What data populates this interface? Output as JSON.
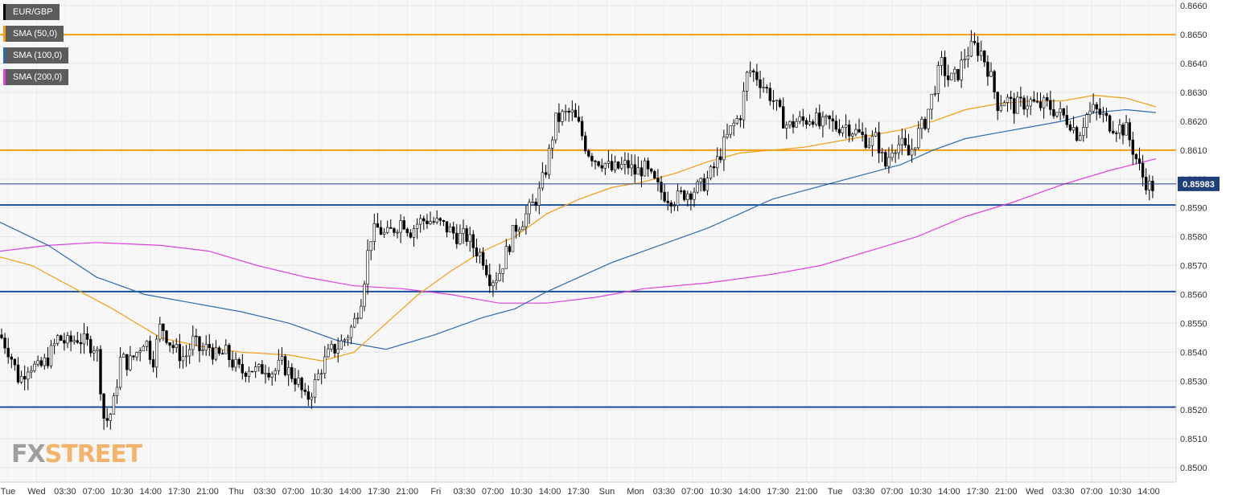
{
  "chart_data": {
    "type": "candlestick",
    "symbol": "EUR/GBP",
    "last_price": "0.85983",
    "last_value": 0.85983,
    "ylim": [
      0.8495,
      0.8662
    ],
    "y_ticks": [
      "0.8660",
      "0.8650",
      "0.8640",
      "0.8630",
      "0.8620",
      "0.8610",
      "0.8600",
      "0.8590",
      "0.8580",
      "0.8570",
      "0.8560",
      "0.8550",
      "0.8540",
      "0.8530",
      "0.8520",
      "0.8510",
      "0.8500"
    ],
    "x_ticks": [
      "Tue",
      "Wed",
      "03:30",
      "07:00",
      "10:30",
      "14:00",
      "17:30",
      "21:00",
      "Thu",
      "03:30",
      "07:00",
      "10:30",
      "14:00",
      "17:30",
      "21:00",
      "Fri",
      "03:30",
      "07:00",
      "10:30",
      "14:00",
      "17:30",
      "Sun",
      "Mon",
      "03:30",
      "07:00",
      "10:30",
      "14:00",
      "17:30",
      "21:00",
      "Tue",
      "03:30",
      "07:00",
      "10:30",
      "14:00",
      "17:30",
      "21:00",
      "Wed",
      "03:30",
      "07:00",
      "10:30",
      "14:00"
    ],
    "horizontal_levels": [
      {
        "value": 0.865,
        "color": "#f39c12"
      },
      {
        "value": 0.861,
        "color": "#f39c12"
      },
      {
        "value": 0.8591,
        "color": "#1a4f9c"
      },
      {
        "value": 0.8561,
        "color": "#1a4f9c"
      },
      {
        "value": 0.8521,
        "color": "#1a4f9c"
      }
    ],
    "legend": [
      {
        "label": "EUR/GBP",
        "color": "#000000"
      },
      {
        "label": "SMA (50,0)",
        "color": "#f39c12"
      },
      {
        "label": "SMA (100,0)",
        "color": "#2b6cb0"
      },
      {
        "label": "SMA (200,0)",
        "color": "#e040e0"
      }
    ],
    "close_path": [
      [
        0,
        0.8546
      ],
      [
        12,
        0.854
      ],
      [
        24,
        0.853
      ],
      [
        36,
        0.8536
      ],
      [
        48,
        0.8534
      ],
      [
        60,
        0.8538
      ],
      [
        72,
        0.8545
      ],
      [
        84,
        0.8543
      ],
      [
        96,
        0.8545
      ],
      [
        108,
        0.8543
      ],
      [
        120,
        0.8542
      ],
      [
        130,
        0.8515
      ],
      [
        140,
        0.852
      ],
      [
        150,
        0.8538
      ],
      [
        160,
        0.8536
      ],
      [
        170,
        0.854
      ],
      [
        180,
        0.8545
      ],
      [
        190,
        0.8537
      ],
      [
        200,
        0.855
      ],
      [
        210,
        0.8544
      ],
      [
        220,
        0.854
      ],
      [
        230,
        0.8538
      ],
      [
        240,
        0.8544
      ],
      [
        250,
        0.854
      ],
      [
        260,
        0.8542
      ],
      [
        270,
        0.8538
      ],
      [
        280,
        0.854
      ],
      [
        290,
        0.8536
      ],
      [
        300,
        0.8533
      ],
      [
        310,
        0.8535
      ],
      [
        320,
        0.8533
      ],
      [
        330,
        0.8535
      ],
      [
        340,
        0.8533
      ],
      [
        350,
        0.8536
      ],
      [
        360,
        0.8533
      ],
      [
        370,
        0.853
      ],
      [
        380,
        0.8523
      ],
      [
        390,
        0.8528
      ],
      [
        400,
        0.8535
      ],
      [
        410,
        0.854
      ],
      [
        420,
        0.8542
      ],
      [
        430,
        0.8545
      ],
      [
        440,
        0.855
      ],
      [
        450,
        0.856
      ],
      [
        460,
        0.858
      ],
      [
        470,
        0.8583
      ],
      [
        480,
        0.858
      ],
      [
        490,
        0.8583
      ],
      [
        500,
        0.8586
      ],
      [
        510,
        0.8582
      ],
      [
        520,
        0.8585
      ],
      [
        530,
        0.8586
      ],
      [
        540,
        0.8585
      ],
      [
        550,
        0.8584
      ],
      [
        560,
        0.8582
      ],
      [
        570,
        0.858
      ],
      [
        580,
        0.858
      ],
      [
        590,
        0.8576
      ],
      [
        600,
        0.8573
      ],
      [
        610,
        0.8565
      ],
      [
        620,
        0.8567
      ],
      [
        630,
        0.8575
      ],
      [
        640,
        0.8583
      ],
      [
        650,
        0.8586
      ],
      [
        660,
        0.859
      ],
      [
        670,
        0.8595
      ],
      [
        680,
        0.8605
      ],
      [
        690,
        0.862
      ],
      [
        700,
        0.8622
      ],
      [
        710,
        0.8623
      ],
      [
        720,
        0.8618
      ],
      [
        730,
        0.861
      ],
      [
        740,
        0.8607
      ],
      [
        750,
        0.8606
      ],
      [
        760,
        0.8603
      ],
      [
        770,
        0.8604
      ],
      [
        780,
        0.8605
      ],
      [
        790,
        0.8602
      ],
      [
        800,
        0.8604
      ],
      [
        810,
        0.86
      ],
      [
        820,
        0.8596
      ],
      [
        830,
        0.8594
      ],
      [
        840,
        0.8593
      ],
      [
        850,
        0.8595
      ],
      [
        860,
        0.8596
      ],
      [
        870,
        0.8597
      ],
      [
        880,
        0.86
      ],
      [
        890,
        0.8605
      ],
      [
        900,
        0.8612
      ],
      [
        910,
        0.8618
      ],
      [
        920,
        0.8622
      ],
      [
        930,
        0.8638
      ],
      [
        940,
        0.8636
      ],
      [
        950,
        0.8632
      ],
      [
        960,
        0.8628
      ],
      [
        970,
        0.8622
      ],
      [
        980,
        0.8618
      ],
      [
        990,
        0.862
      ],
      [
        1000,
        0.862
      ],
      [
        1010,
        0.8622
      ],
      [
        1020,
        0.8618
      ],
      [
        1030,
        0.862
      ],
      [
        1040,
        0.8618
      ],
      [
        1050,
        0.8619
      ],
      [
        1060,
        0.8617
      ],
      [
        1070,
        0.8615
      ],
      [
        1080,
        0.8613
      ],
      [
        1090,
        0.8614
      ],
      [
        1100,
        0.8604
      ],
      [
        1110,
        0.8612
      ],
      [
        1120,
        0.8612
      ],
      [
        1130,
        0.8608
      ],
      [
        1140,
        0.8615
      ],
      [
        1150,
        0.862
      ],
      [
        1160,
        0.863
      ],
      [
        1170,
        0.864
      ],
      [
        1180,
        0.8634
      ],
      [
        1190,
        0.8636
      ],
      [
        1200,
        0.8643
      ],
      [
        1210,
        0.8646
      ],
      [
        1220,
        0.8644
      ],
      [
        1230,
        0.8637
      ],
      [
        1240,
        0.8626
      ],
      [
        1250,
        0.8628
      ],
      [
        1260,
        0.8625
      ],
      [
        1270,
        0.8626
      ],
      [
        1280,
        0.8627
      ],
      [
        1290,
        0.8625
      ],
      [
        1300,
        0.8626
      ],
      [
        1310,
        0.8624
      ],
      [
        1320,
        0.8622
      ],
      [
        1330,
        0.862
      ],
      [
        1340,
        0.8615
      ],
      [
        1350,
        0.8622
      ],
      [
        1360,
        0.8624
      ],
      [
        1370,
        0.8622
      ],
      [
        1380,
        0.8619
      ],
      [
        1390,
        0.8618
      ],
      [
        1400,
        0.8617
      ],
      [
        1410,
        0.8609
      ],
      [
        1420,
        0.8601
      ],
      [
        1430,
        0.8597
      ],
      [
        1437,
        0.8598
      ]
    ],
    "sma50": [
      [
        0,
        0.8573
      ],
      [
        40,
        0.857
      ],
      [
        80,
        0.8564
      ],
      [
        140,
        0.8555
      ],
      [
        200,
        0.8545
      ],
      [
        250,
        0.8542
      ],
      [
        300,
        0.854
      ],
      [
        360,
        0.8539
      ],
      [
        400,
        0.8537
      ],
      [
        440,
        0.854
      ],
      [
        480,
        0.855
      ],
      [
        520,
        0.856
      ],
      [
        560,
        0.8568
      ],
      [
        600,
        0.8575
      ],
      [
        640,
        0.858
      ],
      [
        680,
        0.8588
      ],
      [
        720,
        0.8593
      ],
      [
        760,
        0.8597
      ],
      [
        800,
        0.8599
      ],
      [
        840,
        0.8602
      ],
      [
        880,
        0.8606
      ],
      [
        920,
        0.8609
      ],
      [
        960,
        0.861
      ],
      [
        1000,
        0.8611
      ],
      [
        1040,
        0.8613
      ],
      [
        1080,
        0.8615
      ],
      [
        1120,
        0.8617
      ],
      [
        1160,
        0.862
      ],
      [
        1200,
        0.8624
      ],
      [
        1240,
        0.8626
      ],
      [
        1280,
        0.8627
      ],
      [
        1320,
        0.8627
      ],
      [
        1360,
        0.8629
      ],
      [
        1400,
        0.8628
      ],
      [
        1437,
        0.8625
      ]
    ],
    "sma100": [
      [
        0,
        0.8585
      ],
      [
        60,
        0.8577
      ],
      [
        120,
        0.8566
      ],
      [
        180,
        0.856
      ],
      [
        240,
        0.8557
      ],
      [
        300,
        0.8554
      ],
      [
        360,
        0.855
      ],
      [
        420,
        0.8544
      ],
      [
        480,
        0.8541
      ],
      [
        540,
        0.8546
      ],
      [
        600,
        0.8552
      ],
      [
        640,
        0.8555
      ],
      [
        680,
        0.8561
      ],
      [
        720,
        0.8566
      ],
      [
        760,
        0.8571
      ],
      [
        800,
        0.8575
      ],
      [
        840,
        0.8579
      ],
      [
        880,
        0.8583
      ],
      [
        920,
        0.8588
      ],
      [
        960,
        0.8593
      ],
      [
        1000,
        0.8596
      ],
      [
        1040,
        0.8599
      ],
      [
        1080,
        0.8602
      ],
      [
        1120,
        0.8605
      ],
      [
        1160,
        0.861
      ],
      [
        1200,
        0.8614
      ],
      [
        1240,
        0.8616
      ],
      [
        1280,
        0.8618
      ],
      [
        1320,
        0.862
      ],
      [
        1360,
        0.8623
      ],
      [
        1400,
        0.8624
      ],
      [
        1437,
        0.8623
      ]
    ],
    "sma200": [
      [
        0,
        0.8575
      ],
      [
        60,
        0.8577
      ],
      [
        120,
        0.8578
      ],
      [
        200,
        0.8577
      ],
      [
        260,
        0.8575
      ],
      [
        320,
        0.857
      ],
      [
        380,
        0.8566
      ],
      [
        440,
        0.8563
      ],
      [
        500,
        0.8562
      ],
      [
        560,
        0.856
      ],
      [
        620,
        0.8557
      ],
      [
        680,
        0.8557
      ],
      [
        740,
        0.8559
      ],
      [
        800,
        0.8562
      ],
      [
        880,
        0.8564
      ],
      [
        960,
        0.8567
      ],
      [
        1020,
        0.857
      ],
      [
        1080,
        0.8575
      ],
      [
        1140,
        0.858
      ],
      [
        1200,
        0.8587
      ],
      [
        1260,
        0.8592
      ],
      [
        1320,
        0.8598
      ],
      [
        1380,
        0.8603
      ],
      [
        1437,
        0.8607
      ]
    ]
  },
  "watermark": {
    "part1": "FX",
    "part2": "STREET"
  }
}
